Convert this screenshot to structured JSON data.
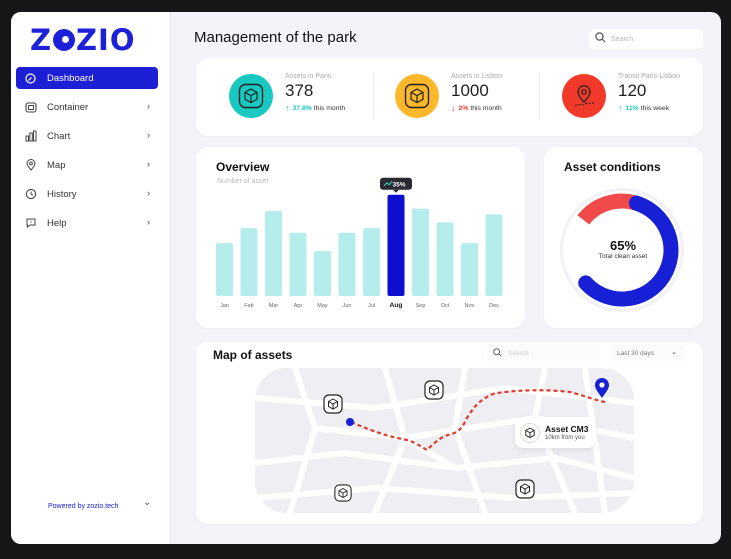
{
  "app": {
    "logo": "ZOZIO",
    "powered_by": "Powered by zozio.tech"
  },
  "sidebar": {
    "items": [
      {
        "label": "Dashboard",
        "icon": "dashboard-icon",
        "active": true
      },
      {
        "label": "Container",
        "icon": "container-icon"
      },
      {
        "label": "Chart",
        "icon": "chart-icon"
      },
      {
        "label": "Map",
        "icon": "map-pin-icon"
      },
      {
        "label": "History",
        "icon": "history-icon"
      },
      {
        "label": "Help",
        "icon": "help-icon"
      }
    ]
  },
  "header": {
    "title": "Management of the park",
    "search_placeholder": "Search"
  },
  "stats": [
    {
      "label": "Assets in Paris",
      "value": "378",
      "change": "37.8%",
      "change_text": "this month",
      "direction": "up",
      "color": "#17c9c0",
      "icon": "box-icon"
    },
    {
      "label": "Assets in Lisbon",
      "value": "1000",
      "change": "2%",
      "change_text": "this month",
      "direction": "down",
      "color": "#fcb72a",
      "icon": "box-icon"
    },
    {
      "label": "Transit Paris-Lisbon",
      "value": "120",
      "change": "11%",
      "change_text": "this week",
      "direction": "up",
      "color": "#f23a2b",
      "icon": "route-icon"
    }
  ],
  "overview": {
    "title": "Overview",
    "subtitle": "Number of asset",
    "tooltip": "35%"
  },
  "chart_data": {
    "type": "bar",
    "categories": [
      "Jan",
      "Feb",
      "Mar",
      "Apr",
      "May",
      "Jun",
      "Jul",
      "Aug",
      "Sep",
      "Oct",
      "Nov",
      "Dec"
    ],
    "values": [
      46,
      59,
      74,
      55,
      39,
      55,
      59,
      88,
      76,
      64,
      46,
      71
    ],
    "highlight_index": 7,
    "colors": {
      "bar": "#b5ecec",
      "highlight": "#0d0ed0"
    }
  },
  "asset_conditions": {
    "title": "Asset conditions",
    "percent": "65%",
    "caption": "Total clean asset",
    "value": 0.65,
    "colors": {
      "clean": "#1720d4",
      "other": "#f04a4a"
    }
  },
  "map": {
    "title": "Map of assets",
    "search_placeholder": "Search",
    "period": "Last 30 days",
    "asset_name": "Asset CM3",
    "asset_distance": "10km from you"
  }
}
